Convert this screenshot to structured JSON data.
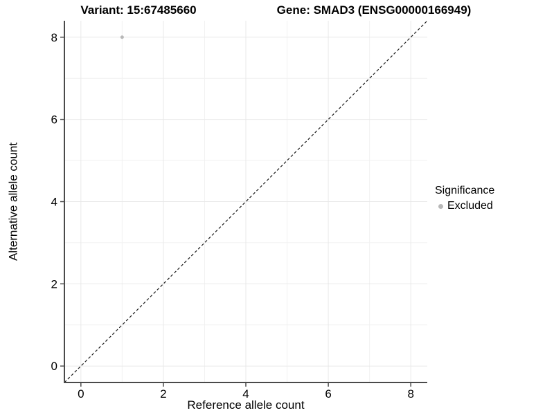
{
  "chart_data": {
    "type": "scatter",
    "title_left": "Variant: 15:67485660",
    "title_right": "Gene: SMAD3 (ENSG00000166949)",
    "xlabel": "Reference allele count",
    "ylabel": "Alternative allele count",
    "xlim": [
      -0.4,
      8.4
    ],
    "ylim": [
      -0.4,
      8.4
    ],
    "x_ticks": [
      0,
      2,
      4,
      6,
      8
    ],
    "y_ticks": [
      0,
      2,
      4,
      6,
      8
    ],
    "x_minor_gridlines": [
      1,
      3,
      5,
      7
    ],
    "y_minor_gridlines": [
      1,
      3,
      5,
      7
    ],
    "grid": "on",
    "series": [
      {
        "name": "Excluded",
        "color": "#b8b8b8",
        "points": [
          {
            "x": 1,
            "y": 8
          }
        ]
      }
    ],
    "reference_line": {
      "style": "dashed",
      "slope": 1,
      "intercept": 0
    },
    "legend": {
      "position": "right",
      "title": "Significance",
      "entries": [
        {
          "label": "Excluded",
          "color": "#b8b8b8"
        }
      ]
    }
  },
  "colors": {
    "background": "#ffffff",
    "text": "#000000",
    "axis_line": "#4a4a4a",
    "tick_mark": "#4a4a4a",
    "grid_major": "#e8e8e8",
    "grid_minor": "#f1f1f1",
    "dashed_line": "#1a1a1a"
  }
}
